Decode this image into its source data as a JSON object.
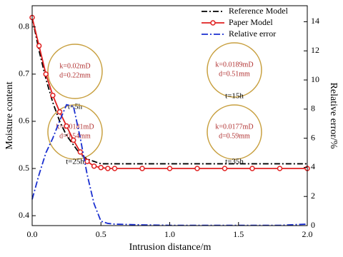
{
  "chart_data": {
    "type": "line",
    "x_label": "Intrusion distance/m",
    "y_label": "Moisture content",
    "y2_label": "Relative error/%",
    "x": [
      0,
      0.05,
      0.1,
      0.15,
      0.2,
      0.25,
      0.3,
      0.35,
      0.4,
      0.45,
      0.5,
      0.55,
      0.6,
      0.8,
      1.0,
      1.2,
      1.4,
      1.6,
      1.8,
      2.0
    ],
    "series": [
      {
        "name": "Reference Model",
        "color": "#000000",
        "dash": "8 3 2 3",
        "values": [
          0.82,
          0.75,
          0.69,
          0.64,
          0.6,
          0.57,
          0.55,
          0.53,
          0.52,
          0.515,
          0.51,
          0.51,
          0.51,
          0.51,
          0.51,
          0.51,
          0.51,
          0.51,
          0.51,
          0.51
        ]
      },
      {
        "name": "Paper Model",
        "color": "#e02020",
        "marker": "circle",
        "values": [
          0.82,
          0.76,
          0.7,
          0.655,
          0.62,
          0.59,
          0.56,
          0.535,
          0.515,
          0.505,
          0.502,
          0.5,
          0.5,
          0.5,
          0.5,
          0.5,
          0.5,
          0.5,
          0.5,
          0.5
        ]
      },
      {
        "name": "Relative error",
        "color": "#1a2fd0",
        "dash": "9 3 2 3",
        "axis": "y2",
        "values": [
          1.8,
          3.5,
          5.0,
          6.0,
          7.2,
          8.3,
          8.2,
          6.0,
          3.5,
          1.5,
          0.3,
          0.15,
          0.1,
          0.05,
          0.02,
          0.02,
          0.02,
          0.02,
          0.02,
          0.1
        ]
      }
    ],
    "xlim": [
      0,
      2.0
    ],
    "xticks": [
      {
        "value": 0,
        "label": "0.0"
      },
      0.5,
      {
        "value": 1,
        "label": "1.0"
      },
      1.5,
      {
        "value": 2,
        "label": "2.0"
      }
    ],
    "ylim": [
      0.379,
      0.845
    ],
    "yticks": [
      0.4,
      0.5,
      0.6,
      0.7,
      0.8
    ],
    "y2lim": [
      0,
      15.1
    ],
    "y2ticks": [
      0,
      2,
      4,
      6,
      8,
      10,
      12,
      14
    ],
    "legend": "top-right",
    "annotations": [
      {
        "k": "k=0.02mD",
        "d": "d=0.22mm",
        "t": "t=5h"
      },
      {
        "k": "k=0.0189mD",
        "d": "d=0.51mm",
        "t": "t=15h"
      },
      {
        "k": "k=0.0181mD",
        "d": "d=0.54mm",
        "t": "t=25h"
      },
      {
        "k": "k=0.0177mD",
        "d": "d=0.59mm",
        "t": "t=35h"
      }
    ]
  }
}
